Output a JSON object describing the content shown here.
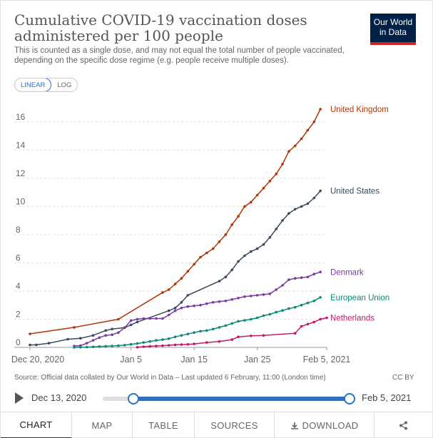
{
  "header": {
    "title": "Cumulative COVID-19 vaccination doses administered per 100 people",
    "subtitle": "This is counted as a single dose, and may not equal the total number of people vaccinated, depending on the specific dose regime (e.g. people receive multiple doses).",
    "logo_line1": "Our World",
    "logo_line2": "in Data"
  },
  "scale_toggle": {
    "linear_label": "LINEAR",
    "log_label": "LOG",
    "selected": "LINEAR"
  },
  "footer": {
    "source": "Source: Official data collated by Our World in Data – Last updated 6 February, 11:00 (London time)",
    "license": "CC BY"
  },
  "timeline": {
    "start_label": "Dec 13, 2020",
    "end_label": "Feb 5, 2021"
  },
  "tabs": [
    {
      "id": "chart",
      "label": "CHART"
    },
    {
      "id": "map",
      "label": "MAP"
    },
    {
      "id": "table",
      "label": "TABLE"
    },
    {
      "id": "sources",
      "label": "SOURCES"
    },
    {
      "id": "download",
      "label": "DOWNLOAD"
    },
    {
      "id": "share",
      "label": ""
    }
  ],
  "colors": {
    "uk": "#b13507",
    "us": "#3a4a5c",
    "dk": "#7a3b9e",
    "eu": "#078a78",
    "nl": "#c4186a",
    "accent": "#2a72c4"
  },
  "icons": {
    "download": "download-icon",
    "share": "share-icon",
    "play": "play-icon"
  },
  "chart_data": {
    "type": "line",
    "xlabel": "",
    "ylabel": "",
    "x_type": "date",
    "xlim": [
      "2020-12-20",
      "2021-02-05"
    ],
    "ylim": [
      0,
      17
    ],
    "x_ticks": [
      {
        "date": "2020-12-20",
        "label": "Dec 20, 2020"
      },
      {
        "date": "2021-01-05",
        "label": "Jan 5"
      },
      {
        "date": "2021-01-15",
        "label": "Jan 15"
      },
      {
        "date": "2021-01-25",
        "label": "Jan 25"
      },
      {
        "date": "2021-02-05",
        "label": "Feb 5, 2021"
      }
    ],
    "y_ticks": [
      0,
      2,
      4,
      6,
      8,
      10,
      12,
      14,
      16
    ],
    "grid": "horizontal-dashed",
    "series": [
      {
        "name": "United Kingdom",
        "color": "#b13507",
        "points": [
          [
            "2020-12-20",
            0.96
          ],
          [
            "2020-12-27",
            1.42
          ],
          [
            "2021-01-03",
            2.0
          ],
          [
            "2021-01-10",
            3.89
          ],
          [
            "2021-01-11",
            4.1
          ],
          [
            "2021-01-12",
            4.5
          ],
          [
            "2021-01-13",
            4.9
          ],
          [
            "2021-01-14",
            5.4
          ],
          [
            "2021-01-15",
            5.9
          ],
          [
            "2021-01-16",
            6.4
          ],
          [
            "2021-01-17",
            6.7
          ],
          [
            "2021-01-18",
            7.0
          ],
          [
            "2021-01-19",
            7.5
          ],
          [
            "2021-01-20",
            8.0
          ],
          [
            "2021-01-21",
            8.7
          ],
          [
            "2021-01-22",
            9.3
          ],
          [
            "2021-01-23",
            10.0
          ],
          [
            "2021-01-24",
            10.3
          ],
          [
            "2021-01-25",
            10.8
          ],
          [
            "2021-01-26",
            11.3
          ],
          [
            "2021-01-27",
            11.8
          ],
          [
            "2021-01-28",
            12.3
          ],
          [
            "2021-01-29",
            13.0
          ],
          [
            "2021-01-30",
            13.9
          ],
          [
            "2021-01-31",
            14.3
          ],
          [
            "2021-02-01",
            14.8
          ],
          [
            "2021-02-02",
            15.4
          ],
          [
            "2021-02-03",
            16.0
          ],
          [
            "2021-02-04",
            16.9
          ]
        ]
      },
      {
        "name": "United States",
        "color": "#3a4a5c",
        "points": [
          [
            "2020-12-20",
            0.17
          ],
          [
            "2020-12-21",
            0.18
          ],
          [
            "2020-12-23",
            0.3
          ],
          [
            "2020-12-26",
            0.58
          ],
          [
            "2020-12-28",
            0.65
          ],
          [
            "2020-12-30",
            0.85
          ],
          [
            "2021-01-01",
            1.2
          ],
          [
            "2021-01-02",
            1.3
          ],
          [
            "2021-01-04",
            1.4
          ],
          [
            "2021-01-05",
            1.6
          ],
          [
            "2021-01-06",
            1.8
          ],
          [
            "2021-01-11",
            2.6
          ],
          [
            "2021-01-12",
            2.8
          ],
          [
            "2021-01-13",
            3.2
          ],
          [
            "2021-01-14",
            3.7
          ],
          [
            "2021-01-19",
            4.7
          ],
          [
            "2021-01-20",
            5.0
          ],
          [
            "2021-01-21",
            5.5
          ],
          [
            "2021-01-22",
            6.1
          ],
          [
            "2021-01-23",
            6.5
          ],
          [
            "2021-01-24",
            6.8
          ],
          [
            "2021-01-25",
            7.0
          ],
          [
            "2021-01-26",
            7.3
          ],
          [
            "2021-01-27",
            7.8
          ],
          [
            "2021-01-28",
            8.4
          ],
          [
            "2021-01-29",
            9.0
          ],
          [
            "2021-01-30",
            9.5
          ],
          [
            "2021-01-31",
            9.8
          ],
          [
            "2021-02-01",
            10.0
          ],
          [
            "2021-02-02",
            10.2
          ],
          [
            "2021-02-03",
            10.6
          ],
          [
            "2021-02-04",
            11.1
          ]
        ]
      },
      {
        "name": "Denmark",
        "color": "#7a3b9e",
        "points": [
          [
            "2020-12-27",
            0.1
          ],
          [
            "2020-12-28",
            0.12
          ],
          [
            "2020-12-29",
            0.3
          ],
          [
            "2020-12-30",
            0.5
          ],
          [
            "2020-12-31",
            0.7
          ],
          [
            "2021-01-01",
            0.85
          ],
          [
            "2021-01-02",
            0.9
          ],
          [
            "2021-01-03",
            1.05
          ],
          [
            "2021-01-04",
            1.4
          ],
          [
            "2021-01-05",
            1.9
          ],
          [
            "2021-01-06",
            2.0
          ],
          [
            "2021-01-07",
            2.05
          ],
          [
            "2021-01-08",
            2.05
          ],
          [
            "2021-01-09",
            2.05
          ],
          [
            "2021-01-10",
            2.05
          ],
          [
            "2021-01-11",
            2.3
          ],
          [
            "2021-01-12",
            2.6
          ],
          [
            "2021-01-13",
            2.8
          ],
          [
            "2021-01-14",
            2.9
          ],
          [
            "2021-01-15",
            2.95
          ],
          [
            "2021-01-16",
            3.0
          ],
          [
            "2021-01-17",
            3.1
          ],
          [
            "2021-01-18",
            3.2
          ],
          [
            "2021-01-19",
            3.25
          ],
          [
            "2021-01-20",
            3.3
          ],
          [
            "2021-01-21",
            3.4
          ],
          [
            "2021-01-22",
            3.5
          ],
          [
            "2021-01-23",
            3.6
          ],
          [
            "2021-01-24",
            3.65
          ],
          [
            "2021-01-25",
            3.7
          ],
          [
            "2021-01-26",
            3.75
          ],
          [
            "2021-01-27",
            3.8
          ],
          [
            "2021-01-28",
            4.1
          ],
          [
            "2021-01-29",
            4.4
          ],
          [
            "2021-01-30",
            4.8
          ],
          [
            "2021-01-31",
            4.9
          ],
          [
            "2021-02-01",
            4.95
          ],
          [
            "2021-02-02",
            5.0
          ],
          [
            "2021-02-03",
            5.2
          ],
          [
            "2021-02-04",
            5.35
          ]
        ]
      },
      {
        "name": "European Union",
        "color": "#078a78",
        "points": [
          [
            "2020-12-27",
            0.0
          ],
          [
            "2020-12-28",
            0.01
          ],
          [
            "2020-12-29",
            0.02
          ],
          [
            "2020-12-30",
            0.04
          ],
          [
            "2020-12-31",
            0.06
          ],
          [
            "2021-01-01",
            0.08
          ],
          [
            "2021-01-02",
            0.1
          ],
          [
            "2021-01-03",
            0.12
          ],
          [
            "2021-01-04",
            0.16
          ],
          [
            "2021-01-05",
            0.22
          ],
          [
            "2021-01-06",
            0.28
          ],
          [
            "2021-01-07",
            0.35
          ],
          [
            "2021-01-08",
            0.42
          ],
          [
            "2021-01-09",
            0.5
          ],
          [
            "2021-01-10",
            0.55
          ],
          [
            "2021-01-11",
            0.62
          ],
          [
            "2021-01-12",
            0.75
          ],
          [
            "2021-01-13",
            0.85
          ],
          [
            "2021-01-14",
            0.95
          ],
          [
            "2021-01-15",
            1.05
          ],
          [
            "2021-01-16",
            1.15
          ],
          [
            "2021-01-17",
            1.2
          ],
          [
            "2021-01-18",
            1.3
          ],
          [
            "2021-01-19",
            1.42
          ],
          [
            "2021-01-20",
            1.55
          ],
          [
            "2021-01-21",
            1.7
          ],
          [
            "2021-01-22",
            1.85
          ],
          [
            "2021-01-23",
            1.92
          ],
          [
            "2021-01-24",
            2.0
          ],
          [
            "2021-01-25",
            2.1
          ],
          [
            "2021-01-26",
            2.25
          ],
          [
            "2021-01-27",
            2.35
          ],
          [
            "2021-01-28",
            2.5
          ],
          [
            "2021-01-29",
            2.62
          ],
          [
            "2021-01-30",
            2.75
          ],
          [
            "2021-01-31",
            2.85
          ],
          [
            "2021-02-01",
            3.0
          ],
          [
            "2021-02-02",
            3.15
          ],
          [
            "2021-02-03",
            3.3
          ],
          [
            "2021-02-04",
            3.55
          ]
        ]
      },
      {
        "name": "Netherlands",
        "color": "#c4186a",
        "points": [
          [
            "2021-01-06",
            0.01
          ],
          [
            "2021-01-07",
            0.05
          ],
          [
            "2021-01-08",
            0.08
          ],
          [
            "2021-01-09",
            0.1
          ],
          [
            "2021-01-10",
            0.12
          ],
          [
            "2021-01-11",
            0.15
          ],
          [
            "2021-01-12",
            0.18
          ],
          [
            "2021-01-13",
            0.2
          ],
          [
            "2021-01-14",
            0.22
          ],
          [
            "2021-01-15",
            0.25
          ],
          [
            "2021-01-17",
            0.35
          ],
          [
            "2021-01-19",
            0.42
          ],
          [
            "2021-01-21",
            0.55
          ],
          [
            "2021-01-22",
            0.75
          ],
          [
            "2021-01-24",
            0.82
          ],
          [
            "2021-01-26",
            0.85
          ],
          [
            "2021-01-31",
            1.0
          ],
          [
            "2021-02-01",
            1.5
          ],
          [
            "2021-02-02",
            1.65
          ],
          [
            "2021-02-03",
            1.8
          ],
          [
            "2021-02-04",
            2.0
          ],
          [
            "2021-02-05",
            2.1
          ]
        ]
      }
    ]
  }
}
